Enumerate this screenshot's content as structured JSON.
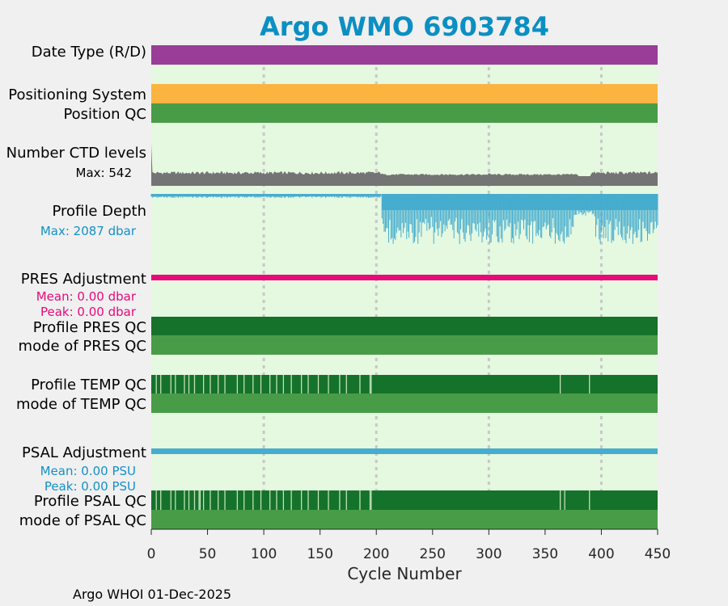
{
  "chart_data": {
    "type": "timeline",
    "title": "Argo WMO 6903784",
    "xlabel": "Cycle Number",
    "xlim": [
      0,
      450
    ],
    "xticks": [
      0,
      50,
      100,
      150,
      200,
      250,
      300,
      350,
      400,
      450
    ],
    "vertical_gridlines": [
      100,
      200,
      300,
      400
    ],
    "footer": "Argo WHOI 01-Dec-2025",
    "colors": {
      "title": "#0b8fc3",
      "background": "#e5f8e0",
      "purple": "#993d99",
      "orange": "#fbb440",
      "qc_green": "#499c47",
      "qc_dark": "#15722a",
      "qc_light": "#c5e3bc",
      "gray": "#747474",
      "blue": "#46adcf",
      "pink": "#e8097a",
      "label_blue": "#1390c8",
      "label_pink": "#e8097a"
    },
    "rows": [
      {
        "label": "Date Type (R/D)",
        "type": "band",
        "color": "purple"
      },
      {
        "label": "Positioning System",
        "type": "band",
        "color": "orange"
      },
      {
        "label": "Position QC",
        "type": "band",
        "color": "qc_green"
      },
      {
        "label": "Number CTD levels",
        "type": "ctd_levels",
        "max_label": "Max: 542",
        "max_value": 542
      },
      {
        "label": "Profile Depth",
        "type": "profile_depth",
        "max_label": "Max: 2087 dbar",
        "max_value": 2087
      },
      {
        "label": "PRES Adjustment",
        "type": "adjustment",
        "color": "pink",
        "mean_label": "Mean: 0.00 dbar",
        "peak_label": "Peak: 0.00 dbar"
      },
      {
        "label": "Profile PRES QC",
        "type": "band",
        "color": "qc_dark"
      },
      {
        "label": "mode of PRES QC",
        "type": "band",
        "color": "qc_green"
      },
      {
        "label": "Profile TEMP QC",
        "type": "profile_qc",
        "light_cycles": [
          4,
          8,
          17,
          21,
          29,
          33,
          38,
          46,
          52,
          59,
          65,
          76,
          82,
          90,
          97,
          105,
          111,
          117,
          124,
          133,
          139,
          148,
          157,
          167,
          173,
          185,
          194,
          195,
          363,
          389
        ]
      },
      {
        "label": "mode of TEMP QC",
        "type": "band",
        "color": "qc_green"
      },
      {
        "label": "PSAL Adjustment",
        "type": "adjustment",
        "color": "blue",
        "mean_label": "Mean: 0.00 PSU",
        "peak_label": "Peak: 0.00 PSU"
      },
      {
        "label": "Profile PSAL QC",
        "type": "profile_qc",
        "light_cycles": [
          4,
          8,
          17,
          21,
          29,
          33,
          38,
          42,
          43,
          46,
          52,
          59,
          65,
          76,
          82,
          90,
          97,
          105,
          111,
          117,
          124,
          133,
          139,
          148,
          157,
          167,
          173,
          185,
          194,
          195,
          363,
          367,
          389
        ]
      },
      {
        "label": "mode of PSAL QC",
        "type": "band",
        "color": "qc_green"
      }
    ],
    "profile_depth_segments": [
      {
        "cycle_range": [
          0,
          204
        ],
        "depth_dbar": 200
      },
      {
        "cycle_range": [
          205,
          450
        ],
        "depth_dbar": 2000
      }
    ]
  }
}
